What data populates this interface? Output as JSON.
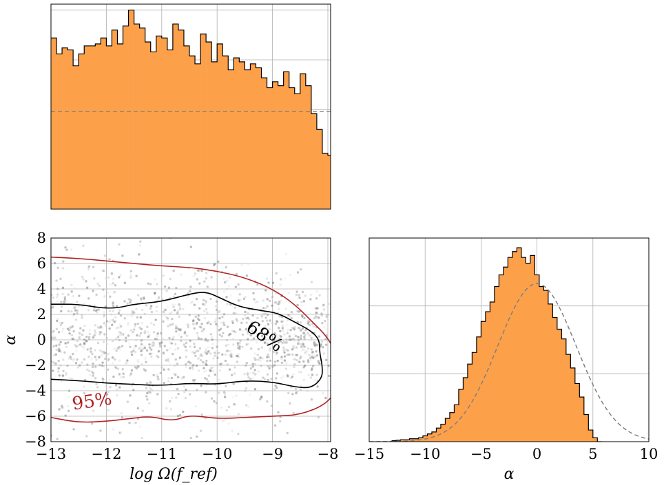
{
  "colors": {
    "hist_fill": "#fda04a",
    "hist_edge": "#000000",
    "prior": "#808080",
    "contour68": "#000000",
    "contour95": "#b22222",
    "grid": "#b0b0b0"
  },
  "chart_data": [
    {
      "panel": "top-left",
      "type": "bar",
      "description_of_axis": "log Omega(f_ref) marginal histogram",
      "xlim": [
        -13,
        -7.95
      ],
      "ylim": [
        0,
        1.03
      ],
      "grid": true,
      "bin_edges_start": -13.0,
      "bin_width": 0.1,
      "values": [
        0.86,
        0.78,
        0.81,
        0.8,
        0.72,
        0.78,
        0.82,
        0.82,
        0.83,
        0.86,
        0.82,
        0.9,
        0.83,
        0.92,
        1.0,
        0.93,
        0.91,
        0.84,
        0.79,
        0.87,
        0.86,
        0.8,
        0.93,
        0.9,
        0.82,
        0.77,
        0.73,
        0.88,
        0.84,
        0.74,
        0.83,
        0.77,
        0.7,
        0.76,
        0.74,
        0.7,
        0.73,
        0.71,
        0.66,
        0.61,
        0.64,
        0.62,
        0.69,
        0.61,
        0.58,
        0.68,
        0.62,
        0.48,
        0.4,
        0.28,
        0.27,
        0.11,
        0.07,
        0.0,
        0.0,
        0.004
      ],
      "prior_level": 0.49
    },
    {
      "panel": "bottom-left",
      "type": "scatter",
      "xlabel": "log Ω(f_ref)",
      "ylabel": "α",
      "xlim": [
        -13,
        -7.95
      ],
      "ylim": [
        -8,
        8
      ],
      "xticks": [
        "−13",
        "−12",
        "−11",
        "−10",
        "−9",
        "−8"
      ],
      "xtick_values": [
        -13,
        -12,
        -11,
        -10,
        -9,
        -8
      ],
      "yticks": [
        "−8",
        "−6",
        "−4",
        "−2",
        "0",
        "2",
        "4",
        "6",
        "8"
      ],
      "ytick_values": [
        -8,
        -6,
        -4,
        -2,
        0,
        2,
        4,
        6,
        8
      ],
      "grid": true,
      "contours": [
        {
          "name": "68%",
          "label": "68%",
          "label_pos": [
            -9.2,
            -0.1
          ],
          "points": [
            [
              -13,
              2.8
            ],
            [
              -12.5,
              2.8
            ],
            [
              -12.1,
              2.5
            ],
            [
              -11.8,
              2.5
            ],
            [
              -11.5,
              2.8
            ],
            [
              -11.0,
              3.0
            ],
            [
              -10.5,
              3.6
            ],
            [
              -10.2,
              3.8
            ],
            [
              -9.9,
              3.2
            ],
            [
              -9.6,
              2.6
            ],
            [
              -9.2,
              2.3
            ],
            [
              -8.9,
              2.1
            ],
            [
              -8.6,
              1.4
            ],
            [
              -8.3,
              0.7
            ],
            [
              -8.15,
              0.0
            ],
            [
              -8.15,
              -1.0
            ],
            [
              -8.1,
              -2.0
            ],
            [
              -8.1,
              -3.0
            ],
            [
              -8.3,
              -3.8
            ],
            [
              -8.6,
              -3.7
            ],
            [
              -9.0,
              -3.3
            ],
            [
              -9.5,
              -3.2
            ],
            [
              -10.0,
              -3.5
            ],
            [
              -10.5,
              -3.4
            ],
            [
              -11.0,
              -3.6
            ],
            [
              -11.5,
              -3.5
            ],
            [
              -12.0,
              -3.4
            ],
            [
              -12.5,
              -3.2
            ],
            [
              -13,
              -3.1
            ]
          ]
        },
        {
          "name": "95%",
          "label": "95%",
          "label_pos": [
            -12.6,
            -5.5
          ],
          "points": [
            [
              -13,
              6.5
            ],
            [
              -12.5,
              6.4
            ],
            [
              -12.0,
              6.2
            ],
            [
              -11.5,
              6.0
            ],
            [
              -11.0,
              5.8
            ],
            [
              -10.5,
              5.7
            ],
            [
              -10.0,
              5.4
            ],
            [
              -9.5,
              4.9
            ],
            [
              -9.0,
              4.0
            ],
            [
              -8.6,
              2.8
            ],
            [
              -8.3,
              1.5
            ],
            [
              -8.0,
              0.2
            ],
            [
              -7.8,
              -1.5
            ],
            [
              -7.8,
              -3.5
            ],
            [
              -8.0,
              -5.0
            ],
            [
              -8.5,
              -5.9
            ],
            [
              -9.0,
              -6.0
            ],
            [
              -9.5,
              -6.1
            ],
            [
              -10.0,
              -6.2
            ],
            [
              -10.5,
              -5.9
            ],
            [
              -10.8,
              -6.4
            ],
            [
              -11.2,
              -6.0
            ],
            [
              -11.6,
              -6.2
            ],
            [
              -12.0,
              -6.4
            ],
            [
              -12.5,
              -6.5
            ],
            [
              -13,
              -6.1
            ]
          ]
        }
      ]
    },
    {
      "panel": "bottom-right",
      "type": "bar",
      "xlabel": "α",
      "xlim": [
        -15,
        10
      ],
      "ylim": [
        0,
        1.05
      ],
      "xticks": [
        "−15",
        "−10",
        "−5",
        "0",
        "5",
        "10"
      ],
      "xtick_values": [
        -15,
        -10,
        -5,
        0,
        5,
        10
      ],
      "grid": true,
      "bin_edges_start": -13.0,
      "bin_width": 0.4,
      "values": [
        0.005,
        0.007,
        0.01,
        0.01,
        0.015,
        0.015,
        0.02,
        0.03,
        0.04,
        0.05,
        0.07,
        0.09,
        0.12,
        0.15,
        0.19,
        0.27,
        0.33,
        0.4,
        0.46,
        0.54,
        0.62,
        0.67,
        0.72,
        0.8,
        0.86,
        0.9,
        0.95,
        0.98,
        1.0,
        0.95,
        0.92,
        0.96,
        0.86,
        0.8,
        0.78,
        0.71,
        0.64,
        0.58,
        0.53,
        0.45,
        0.38,
        0.3,
        0.23,
        0.14,
        0.06,
        0.02,
        0.0
      ],
      "prior": {
        "type": "gaussian",
        "mean": 0,
        "sigma": 3.5,
        "peak": 0.815
      }
    }
  ]
}
